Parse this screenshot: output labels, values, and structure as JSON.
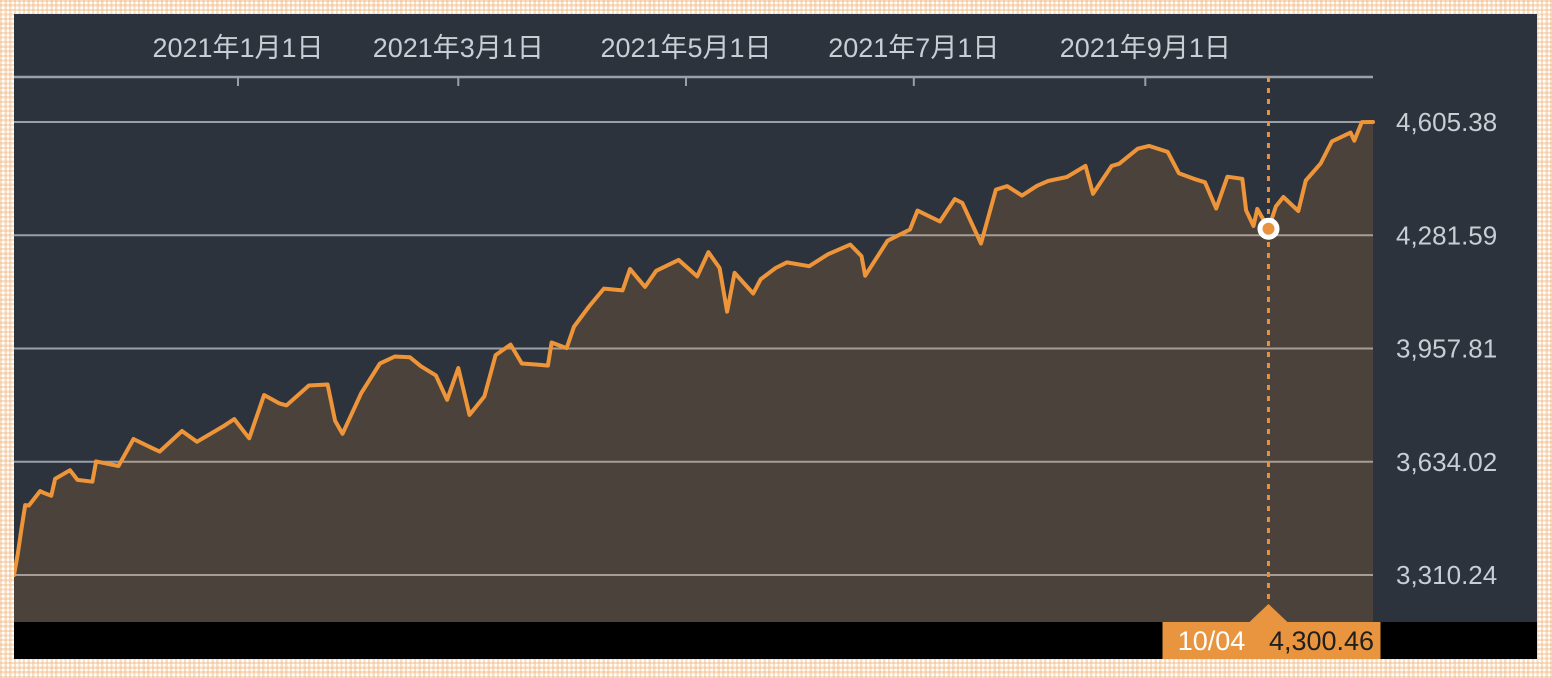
{
  "chart_data": {
    "type": "area",
    "title": "",
    "xlabel": "",
    "ylabel": "",
    "grid": true,
    "legend": false,
    "y_axis_side": "right",
    "x_axis_side": "top",
    "x_range": [
      "2020-11-02",
      "2021-11-01"
    ],
    "ylim": [
      3310.24,
      4605.38
    ],
    "x_ticks": [
      {
        "date": "2021-01-01",
        "label": "2021年1月1日"
      },
      {
        "date": "2021-03-01",
        "label": "2021年3月1日"
      },
      {
        "date": "2021-05-01",
        "label": "2021年5月1日"
      },
      {
        "date": "2021-07-01",
        "label": "2021年7月1日"
      },
      {
        "date": "2021-09-01",
        "label": "2021年9月1日"
      }
    ],
    "y_gridlines": [
      {
        "value": 4605.38,
        "label": "4,605.38"
      },
      {
        "value": 4281.59,
        "label": "4,281.59"
      },
      {
        "value": 3957.81,
        "label": "3,957.81"
      },
      {
        "value": 3634.02,
        "label": "3,634.02"
      },
      {
        "value": 3310.24,
        "label": "3,310.24"
      }
    ],
    "highlight": {
      "date": "2021-10-04",
      "value": 4300.46,
      "date_label": "10/04",
      "value_label": "4,300.46"
    },
    "colors": {
      "line": "#ee9539",
      "area_fill": "rgba(238,149,57,0.16)",
      "background": "#2d333d",
      "bottom_bar": "#000000",
      "grid": "#99a0a8",
      "axis_text": "#c9ced5",
      "crosshair": "#e8923d",
      "marker_fill": "#e8923d",
      "marker_ring": "#ffffff",
      "tooltip_bg": "#e9953f",
      "tooltip_date_text": "#ffffff",
      "tooltip_value_text": "#20201e",
      "frame_pattern": "#f0b882"
    },
    "points": [
      [
        "2020-11-02",
        3310.24
      ],
      [
        "2020-11-03",
        3369
      ],
      [
        "2020-11-04",
        3443
      ],
      [
        "2020-11-05",
        3510
      ],
      [
        "2020-11-06",
        3509
      ],
      [
        "2020-11-09",
        3550
      ],
      [
        "2020-11-10",
        3545
      ],
      [
        "2020-11-12",
        3537
      ],
      [
        "2020-11-13",
        3585
      ],
      [
        "2020-11-17",
        3610
      ],
      [
        "2020-11-19",
        3582
      ],
      [
        "2020-11-23",
        3577
      ],
      [
        "2020-11-24",
        3635
      ],
      [
        "2020-11-30",
        3622
      ],
      [
        "2020-12-04",
        3699
      ],
      [
        "2020-12-09",
        3673
      ],
      [
        "2020-12-11",
        3663
      ],
      [
        "2020-12-17",
        3722
      ],
      [
        "2020-12-21",
        3691
      ],
      [
        "2020-12-28",
        3735
      ],
      [
        "2020-12-31",
        3756
      ],
      [
        "2021-01-04",
        3701
      ],
      [
        "2021-01-08",
        3825
      ],
      [
        "2021-01-12",
        3801
      ],
      [
        "2021-01-14",
        3795
      ],
      [
        "2021-01-20",
        3852
      ],
      [
        "2021-01-25",
        3855
      ],
      [
        "2021-01-27",
        3751
      ],
      [
        "2021-01-29",
        3714
      ],
      [
        "2021-02-03",
        3830
      ],
      [
        "2021-02-08",
        3915
      ],
      [
        "2021-02-12",
        3935
      ],
      [
        "2021-02-16",
        3933
      ],
      [
        "2021-02-19",
        3907
      ],
      [
        "2021-02-23",
        3881
      ],
      [
        "2021-02-26",
        3811
      ],
      [
        "2021-03-01",
        3902
      ],
      [
        "2021-03-04",
        3768
      ],
      [
        "2021-03-08",
        3821
      ],
      [
        "2021-03-11",
        3939
      ],
      [
        "2021-03-15",
        3969
      ],
      [
        "2021-03-18",
        3915
      ],
      [
        "2021-03-23",
        3911
      ],
      [
        "2021-03-25",
        3909
      ],
      [
        "2021-03-26",
        3975
      ],
      [
        "2021-03-30",
        3959
      ],
      [
        "2021-04-01",
        4020
      ],
      [
        "2021-04-05",
        4078
      ],
      [
        "2021-04-09",
        4129
      ],
      [
        "2021-04-14",
        4124
      ],
      [
        "2021-04-16",
        4185
      ],
      [
        "2021-04-20",
        4134
      ],
      [
        "2021-04-23",
        4180
      ],
      [
        "2021-04-29",
        4211
      ],
      [
        "2021-05-04",
        4164
      ],
      [
        "2021-05-07",
        4233
      ],
      [
        "2021-05-10",
        4188
      ],
      [
        "2021-05-12",
        4063
      ],
      [
        "2021-05-14",
        4174
      ],
      [
        "2021-05-19",
        4115
      ],
      [
        "2021-05-21",
        4156
      ],
      [
        "2021-05-25",
        4188
      ],
      [
        "2021-05-28",
        4204
      ],
      [
        "2021-06-03",
        4193
      ],
      [
        "2021-06-08",
        4227
      ],
      [
        "2021-06-14",
        4255
      ],
      [
        "2021-06-17",
        4222
      ],
      [
        "2021-06-18",
        4166
      ],
      [
        "2021-06-24",
        4266
      ],
      [
        "2021-06-30",
        4298
      ],
      [
        "2021-07-02",
        4352
      ],
      [
        "2021-07-08",
        4321
      ],
      [
        "2021-07-12",
        4385
      ],
      [
        "2021-07-14",
        4374
      ],
      [
        "2021-07-19",
        4258
      ],
      [
        "2021-07-23",
        4412
      ],
      [
        "2021-07-26",
        4422
      ],
      [
        "2021-07-30",
        4395
      ],
      [
        "2021-08-03",
        4423
      ],
      [
        "2021-08-06",
        4437
      ],
      [
        "2021-08-11",
        4448
      ],
      [
        "2021-08-16",
        4480
      ],
      [
        "2021-08-18",
        4400
      ],
      [
        "2021-08-23",
        4480
      ],
      [
        "2021-08-25",
        4486
      ],
      [
        "2021-08-30",
        4529
      ],
      [
        "2021-09-02",
        4537
      ],
      [
        "2021-09-07",
        4520
      ],
      [
        "2021-09-10",
        4459
      ],
      [
        "2021-09-14",
        4443
      ],
      [
        "2021-09-17",
        4433
      ],
      [
        "2021-09-20",
        4358
      ],
      [
        "2021-09-23",
        4449
      ],
      [
        "2021-09-27",
        4443
      ],
      [
        "2021-09-28",
        4353
      ],
      [
        "2021-09-30",
        4308
      ],
      [
        "2021-10-01",
        4357
      ],
      [
        "2021-10-04",
        4300.46
      ],
      [
        "2021-10-06",
        4364
      ],
      [
        "2021-10-08",
        4391
      ],
      [
        "2021-10-12",
        4351
      ],
      [
        "2021-10-14",
        4438
      ],
      [
        "2021-10-18",
        4487
      ],
      [
        "2021-10-21",
        4550
      ],
      [
        "2021-10-26",
        4575
      ],
      [
        "2021-10-27",
        4552
      ],
      [
        "2021-10-29",
        4605
      ],
      [
        "2021-11-01",
        4605.38
      ]
    ]
  }
}
